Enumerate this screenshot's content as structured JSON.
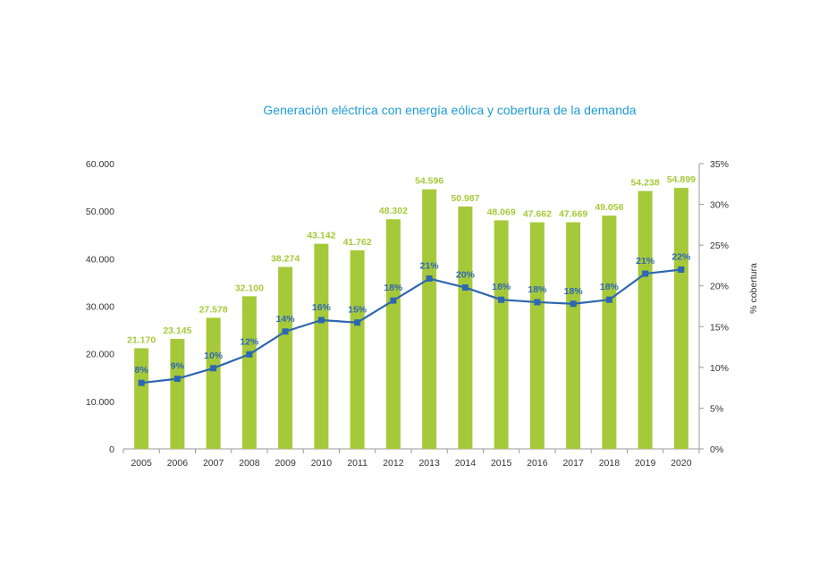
{
  "chart_data": {
    "type": "bar",
    "title": "Generación eléctrica con energía eólica y cobertura de la demanda",
    "categories": [
      "2005",
      "2006",
      "2007",
      "2008",
      "2009",
      "2010",
      "2011",
      "2012",
      "2013",
      "2014",
      "2015",
      "2016",
      "2017",
      "2018",
      "2019",
      "2020"
    ],
    "series": [
      {
        "type": "bar",
        "axis": "left",
        "color": "#a6c93a",
        "values": [
          21170,
          23145,
          27578,
          32100,
          38274,
          43142,
          41762,
          48302,
          54596,
          50987,
          48069,
          47662,
          47669,
          49056,
          54238,
          54899
        ],
        "labels": [
          "21.170",
          "23.145",
          "27.578",
          "32.100",
          "38.274",
          "43.142",
          "41.762",
          "48.302",
          "54.596",
          "50.987",
          "48.069",
          "47.662",
          "47.669",
          "49.056",
          "54.238",
          "54.899"
        ]
      },
      {
        "type": "line",
        "axis": "right",
        "color": "#2e67b1",
        "values": [
          8.1,
          8.6,
          9.9,
          11.6,
          14.4,
          15.8,
          15.5,
          18.2,
          20.9,
          19.8,
          18.3,
          18.0,
          17.8,
          18.3,
          21.5,
          22.0
        ],
        "labels": [
          "8%",
          "9%",
          "10%",
          "12%",
          "14%",
          "16%",
          "15%",
          "18%",
          "21%",
          "20%",
          "18%",
          "18%",
          "18%",
          "18%",
          "21%",
          "22%"
        ]
      }
    ],
    "y_left": {
      "min": 0,
      "max": 60000,
      "ticks": [
        0,
        10000,
        20000,
        30000,
        40000,
        50000,
        60000
      ],
      "tick_labels": [
        "0",
        "10.000",
        "20.000",
        "30.000",
        "40.000",
        "50.000",
        "60.000"
      ]
    },
    "y_right": {
      "min": 0,
      "max": 35,
      "ticks": [
        0,
        5,
        10,
        15,
        20,
        25,
        30,
        35
      ],
      "tick_labels": [
        "0%",
        "5%",
        "10%",
        "15%",
        "20%",
        "25%",
        "30%",
        "35%"
      ],
      "label": "% cobertura"
    },
    "grid": false,
    "legend": "none"
  }
}
